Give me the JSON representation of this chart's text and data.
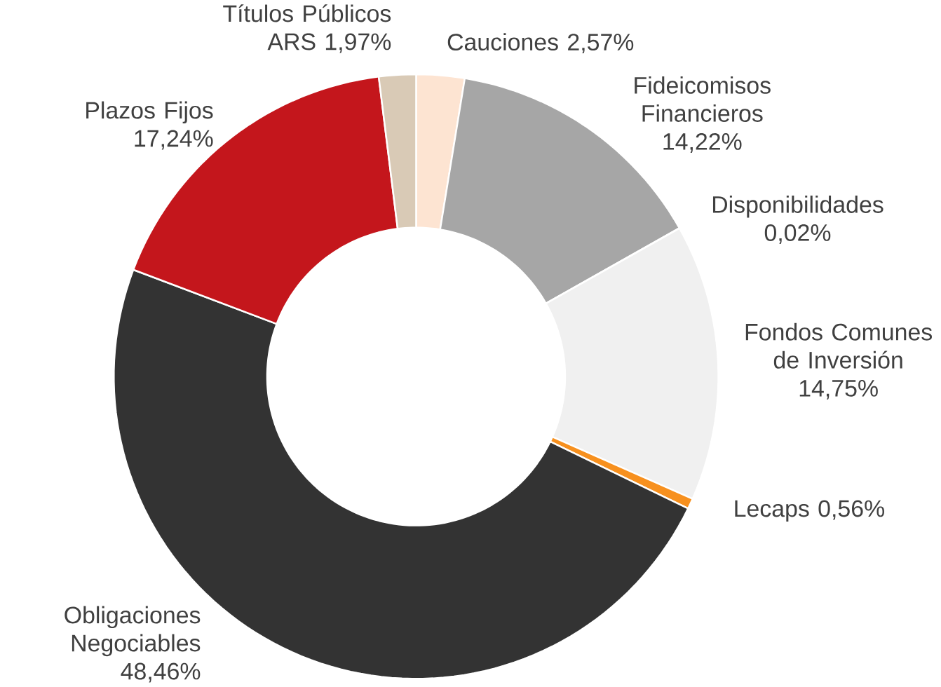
{
  "chart_data": {
    "type": "donut",
    "categories": [
      "Cauciones",
      "Fideicomisos Financieros",
      "Disponibilidades",
      "Fondos Comunes de Inversión",
      "Lecaps",
      "Obligaciones Negociables",
      "Plazos Fijos",
      "Títulos Públicos ARS"
    ],
    "values": [
      2.57,
      14.22,
      0.02,
      14.75,
      0.56,
      48.46,
      17.24,
      1.97
    ],
    "value_labels": [
      "2,57%",
      "14,22%",
      "0,02%",
      "14,75%",
      "0,56%",
      "48,46%",
      "17,24%",
      "1,97%"
    ],
    "colors": [
      "#fde4d2",
      "#a6a6a6",
      "#7f7f7f",
      "#f0f0f0",
      "#f7901e",
      "#333333",
      "#c4161c",
      "#d9cab6"
    ]
  }
}
